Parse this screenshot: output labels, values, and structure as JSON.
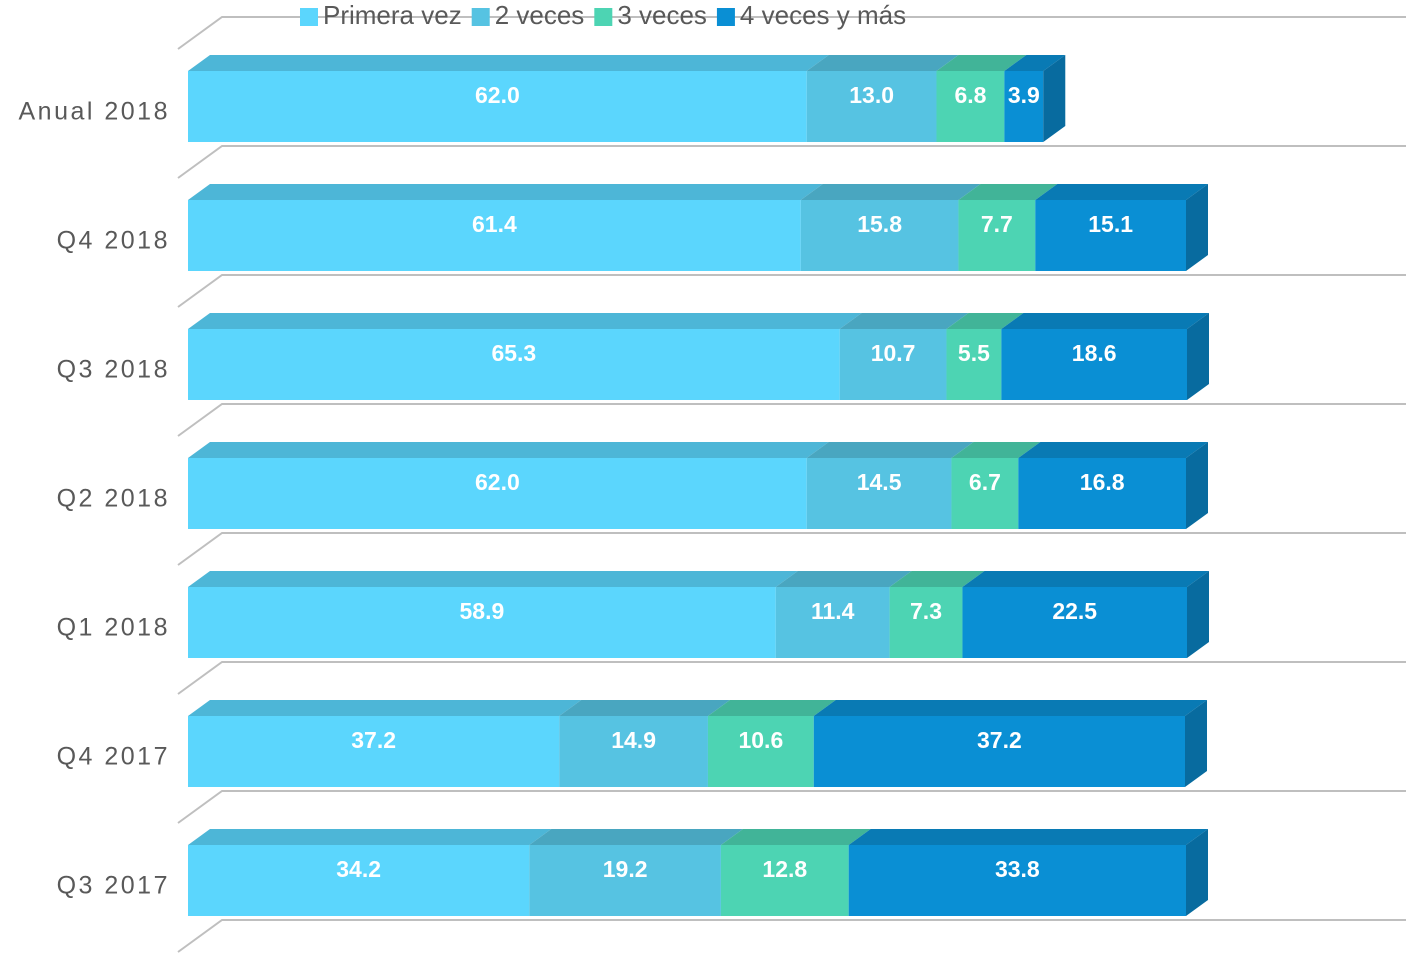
{
  "chart_data": {
    "type": "bar",
    "orientation": "horizontal",
    "stacked": true,
    "categories": [
      "Anual 2018",
      "Q4 2018",
      "Q3 2018",
      "Q2 2018",
      "Q1 2018",
      "Q4 2017",
      "Q3 2017"
    ],
    "series": [
      {
        "name": "Primera vez",
        "color": "#5bd6fd",
        "values": [
          62.0,
          61.4,
          65.3,
          62.0,
          58.9,
          37.2,
          34.2
        ]
      },
      {
        "name": "2 veces",
        "color": "#56c3e2",
        "values": [
          13.0,
          15.8,
          10.7,
          14.5,
          11.4,
          14.9,
          19.2
        ]
      },
      {
        "name": "3 veces",
        "color": "#4dd4b3",
        "values": [
          6.8,
          7.7,
          5.5,
          6.7,
          7.3,
          10.6,
          12.8
        ]
      },
      {
        "name": "4 veces y más",
        "color": "#0a8fd4",
        "values": [
          3.9,
          15.1,
          18.6,
          16.8,
          22.5,
          37.2,
          33.8
        ]
      }
    ],
    "value_labels": [
      [
        "62.0",
        "61.4",
        "65.3",
        "62.0",
        "58.9",
        "37.2",
        "34.2"
      ],
      [
        "13.0",
        "15.8",
        "10.7",
        "14.5",
        "11.4",
        "14.9",
        "19.2"
      ],
      [
        "6.8",
        "7.7",
        "5.5",
        "6.7",
        "7.3",
        "10.6",
        "12.8"
      ],
      [
        "3.9",
        "15.1",
        "18.6",
        "16.8",
        "22.5",
        "37.2",
        "33.8"
      ]
    ],
    "legend": "top"
  }
}
